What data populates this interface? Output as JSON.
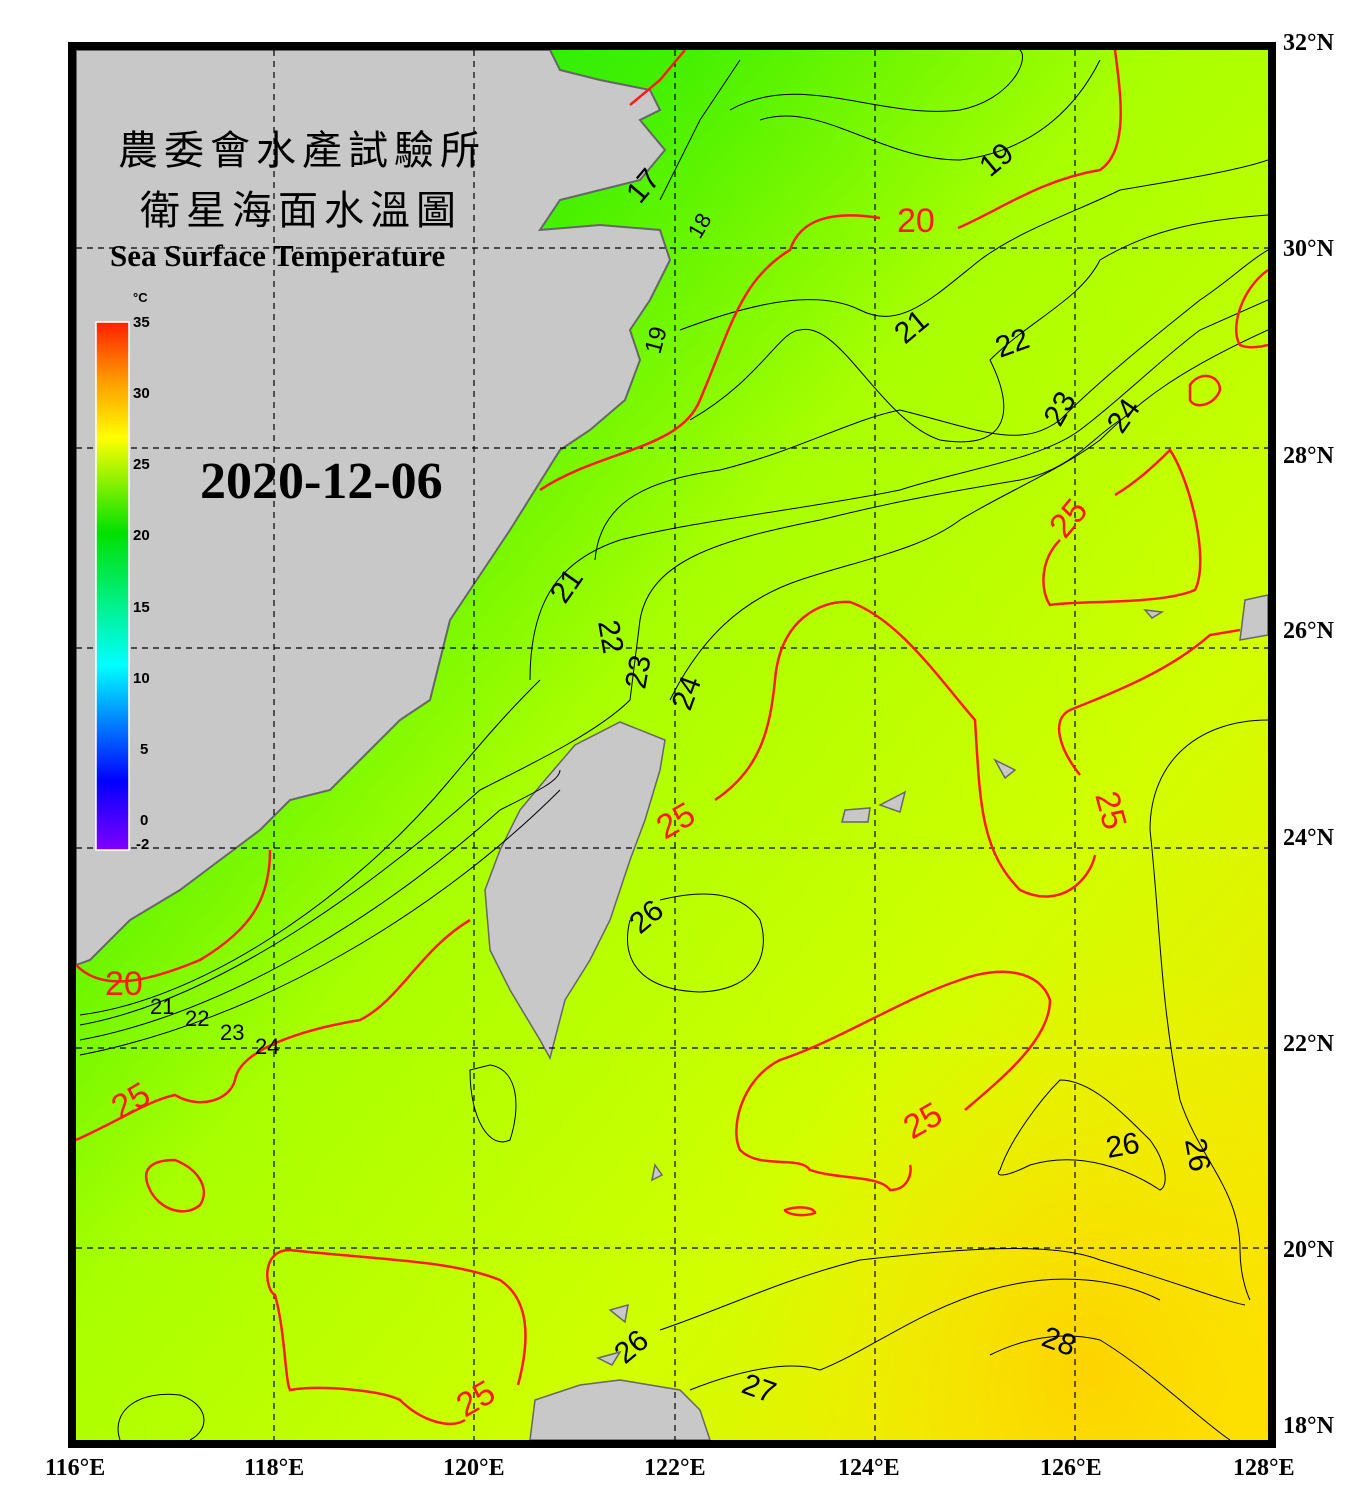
{
  "title": {
    "line1": "農委會水產試驗所",
    "line2": "衛星海面水溫圖",
    "english": "Sea Surface Temperature"
  },
  "date": "2020-12-06",
  "colorbar": {
    "unit": "°C",
    "ticks": [
      "35",
      "30",
      "25",
      "20",
      "15",
      "10",
      "5",
      "0",
      "-2"
    ],
    "range": [
      -2,
      35
    ],
    "colors": [
      "#7f00ff",
      "#0000ff",
      "#00ffff",
      "#00ff00",
      "#ffff00",
      "#ff8000",
      "#ff2000"
    ]
  },
  "axes": {
    "lon_labels": [
      "116°E",
      "118°E",
      "120°E",
      "122°E",
      "124°E",
      "126°E",
      "128°E"
    ],
    "lat_labels": [
      "32°N",
      "30°N",
      "28°N",
      "26°N",
      "24°N",
      "22°N",
      "20°N",
      "18°N"
    ],
    "lon_range": [
      116,
      128
    ],
    "lat_range": [
      18,
      32
    ],
    "grid": "dashed"
  },
  "colors": {
    "land": "#c8c8c8",
    "coast": "#666666",
    "contour_major": "#ff1a1a",
    "contour_minor": "#000000",
    "sea_cold": "#00e840",
    "sea_warm": "#ffee00"
  },
  "contour_labels": {
    "black": [
      "17",
      "18",
      "19",
      "19",
      "21",
      "22",
      "23",
      "24",
      "21",
      "22",
      "23",
      "24",
      "26",
      "26",
      "26",
      "26",
      "27",
      "28",
      "21",
      "22",
      "23",
      "24"
    ],
    "red": [
      "20",
      "20",
      "25",
      "25",
      "25",
      "25",
      "25",
      "25"
    ]
  }
}
